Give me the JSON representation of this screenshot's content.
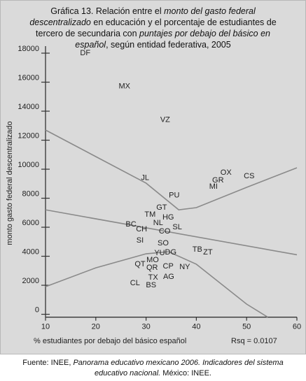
{
  "chart_data": {
    "type": "scatter",
    "title_runs": [
      {
        "text": "Gráfica 13. Relación entre el ",
        "italic": false
      },
      {
        "text": "monto del gasto federal descentralizado",
        "italic": true
      },
      {
        "text": " en educación y el porcentaje de estudiantes de tercero de secundaria con ",
        "italic": false
      },
      {
        "text": "puntajes por debajo del básico en español",
        "italic": true
      },
      {
        "text": ", según entidad federativa, 2005",
        "italic": false
      }
    ],
    "x_label": "% estudiantes por debajo del básico español",
    "y_label": "monto gasto federal descentralizado",
    "annotation": "Rsq = 0.0107",
    "labels": [
      "DF",
      "MX",
      "VZ",
      "JL",
      "PU",
      "OX",
      "GR",
      "MI",
      "CS",
      "GT",
      "TM",
      "HG",
      "NL",
      "BC",
      "CH",
      "SL",
      "CO",
      "SI",
      "SO",
      "TB",
      "ZT",
      "YU",
      "DG",
      "MO",
      "QT",
      "QR",
      "CP",
      "NY",
      "AG",
      "TX",
      "CL",
      "BS"
    ],
    "x": [
      17.9,
      25.7,
      33.8,
      29.8,
      35.6,
      45.9,
      44.3,
      43.4,
      50.5,
      33.1,
      30.8,
      34.4,
      32.4,
      27.0,
      29.1,
      36.2,
      33.7,
      28.8,
      33.4,
      40.2,
      42.3,
      32.7,
      34.9,
      31.3,
      28.8,
      31.2,
      34.4,
      37.7,
      34.5,
      31.4,
      27.8,
      31.0
    ],
    "values": [
      18000,
      15700,
      13400,
      9400,
      8200,
      9760,
      9230,
      8800,
      9520,
      7350,
      6870,
      6670,
      6290,
      6190,
      5860,
      6000,
      5710,
      5080,
      4890,
      4460,
      4270,
      4220,
      4270,
      3740,
      3450,
      3200,
      3300,
      3250,
      2580,
      2530,
      2150,
      2000
    ],
    "lines": [
      {
        "x": [
          10,
          60
        ],
        "values": [
          7200,
          4100
        ]
      },
      {
        "x": [
          10,
          20,
          30,
          36.5,
          40,
          50,
          60
        ],
        "values": [
          12700,
          10870,
          9040,
          7200,
          7350,
          8750,
          10100
        ]
      },
      {
        "x": [
          10,
          20,
          30,
          34.5,
          40,
          50,
          54.2
        ],
        "values": [
          1900,
          3200,
          4170,
          4310,
          3450,
          700,
          -200
        ]
      }
    ],
    "line_color": "#8a8a8a",
    "xlim": [
      10,
      60
    ],
    "ylim": [
      -200,
      18700
    ],
    "xticks": [
      10,
      20,
      30,
      40,
      50,
      60
    ],
    "yticks": [
      0,
      2000,
      4000,
      6000,
      8000,
      10000,
      12000,
      14000,
      16000,
      18000
    ],
    "source_runs": [
      {
        "text": "Fuente: INEE, ",
        "italic": false
      },
      {
        "text": "Panorama educativo mexicano 2006. Indicadores del sistema educativo nacional.",
        "italic": true
      },
      {
        "text": " México: INEE.",
        "italic": false
      }
    ]
  }
}
